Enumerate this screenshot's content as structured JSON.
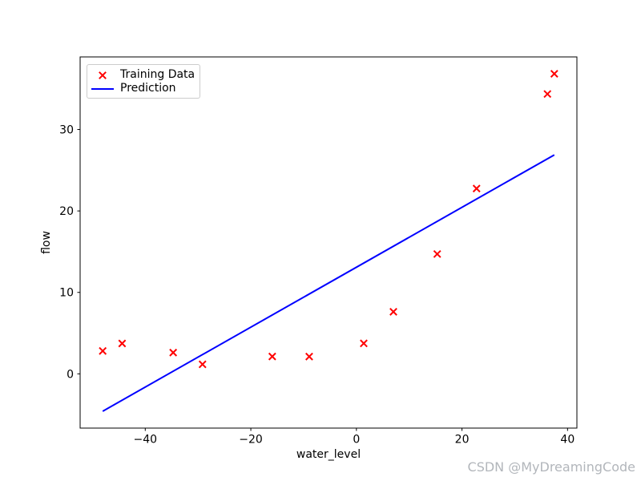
{
  "watermark": {
    "text": "CSDN @MyDreamingCode",
    "color": "#b2b6bb"
  },
  "chart_data": {
    "type": "scatter",
    "title": "",
    "xlabel": "water_level",
    "ylabel": "flow",
    "xlim": [
      -52.34,
      41.77
    ],
    "ylim": [
      -6.66,
      38.91
    ],
    "xticks": [
      -40,
      -20,
      0,
      20,
      40
    ],
    "xtick_labels": [
      "−40",
      "−20",
      "0",
      "20",
      "40"
    ],
    "yticks": [
      0,
      10,
      20,
      30
    ],
    "ytick_labels": [
      "0",
      "10",
      "20",
      "30"
    ],
    "grid": false,
    "background": "#ffffff",
    "axis_color": "#000000",
    "legend": {
      "position": "upper left",
      "entries": [
        {
          "label": "Training Data",
          "marker": "x",
          "color": "#ff0000"
        },
        {
          "label": "Prediction",
          "marker": "line",
          "color": "#0000ff"
        }
      ]
    },
    "series": [
      {
        "name": "Training Data",
        "type": "scatter",
        "marker": "x",
        "color": "#ff0000",
        "points": [
          [
            -48.06,
            2.81
          ],
          [
            -44.38,
            3.73
          ],
          [
            -34.71,
            2.61
          ],
          [
            -29.15,
            1.17
          ],
          [
            -15.94,
            2.13
          ],
          [
            -8.94,
            2.12
          ],
          [
            1.39,
            3.74
          ],
          [
            7.01,
            7.62
          ],
          [
            15.31,
            14.71
          ],
          [
            22.76,
            22.75
          ],
          [
            36.19,
            34.36
          ],
          [
            37.49,
            36.84
          ]
        ]
      },
      {
        "name": "Prediction",
        "type": "line",
        "color": "#0000ff",
        "points": [
          [
            -48.06,
            -4.59
          ],
          [
            37.49,
            26.88
          ]
        ]
      }
    ]
  }
}
